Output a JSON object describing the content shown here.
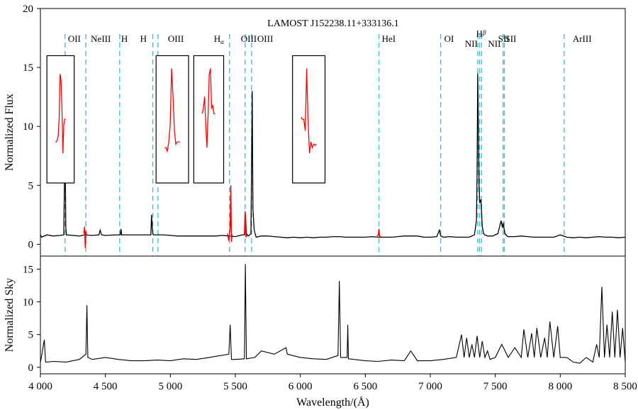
{
  "chart_data": [
    {
      "type": "line",
      "title": "LAMOST J152238.11+333136.1",
      "ylabel": "Normalized Flux",
      "xlabel": "",
      "xlim": [
        4000,
        8500
      ],
      "ylim": [
        -1,
        20
      ],
      "yticks": [
        0,
        5,
        10,
        15,
        20
      ],
      "grid": false,
      "series": [
        {
          "color": "#000000",
          "x": [
            4000,
            4010,
            4050,
            4100,
            4150,
            4180,
            4185,
            4190,
            4195,
            4200,
            4250,
            4300,
            4340,
            4400,
            4450,
            4460,
            4470,
            4500,
            4550,
            4600,
            4615,
            4620,
            4625,
            4650,
            4700,
            4750,
            4800,
            4850,
            4855,
            4860,
            4865,
            4870,
            4900,
            4950,
            5000,
            5050,
            5100,
            5150,
            5200,
            5250,
            5300,
            5350,
            5400,
            5450,
            5500,
            5550,
            5570,
            5577,
            5585,
            5600,
            5620,
            5630,
            5635,
            5645,
            5660,
            5700,
            5750,
            5800,
            5850,
            5900,
            5950,
            6000,
            6050,
            6100,
            6150,
            6200,
            6250,
            6300,
            6350,
            6400,
            6450,
            6500,
            6550,
            6600,
            6650,
            6700,
            6750,
            6800,
            6850,
            6900,
            6950,
            7000,
            7050,
            7070,
            7080,
            7100,
            7150,
            7200,
            7250,
            7300,
            7340,
            7355,
            7360,
            7365,
            7370,
            7375,
            7380,
            7390,
            7400,
            7410,
            7420,
            7440,
            7480,
            7520,
            7545,
            7555,
            7560,
            7575,
            7590,
            7600,
            7650,
            7700,
            7750,
            7800,
            7850,
            7900,
            7950,
            8000,
            8050,
            8100,
            8150,
            8200,
            8250,
            8300,
            8350,
            8400,
            8450,
            8500
          ],
          "y": [
            0.8,
            0.6,
            0.8,
            0.7,
            0.75,
            0.8,
            5.4,
            9.0,
            1.5,
            0.8,
            0.75,
            0.7,
            0.8,
            0.75,
            0.8,
            1.2,
            0.8,
            0.75,
            0.78,
            0.8,
            0.8,
            1.3,
            0.8,
            0.8,
            0.8,
            0.8,
            0.8,
            0.8,
            2.5,
            1.5,
            0.9,
            0.8,
            0.8,
            0.8,
            0.75,
            0.7,
            0.7,
            0.7,
            0.7,
            0.7,
            0.7,
            0.7,
            0.75,
            0.7,
            0.65,
            0.8,
            0.8,
            2.6,
            0.9,
            0.7,
            0.9,
            13.0,
            3.0,
            1.2,
            0.6,
            0.7,
            0.7,
            0.65,
            0.6,
            0.55,
            0.6,
            0.55,
            0.6,
            0.55,
            0.6,
            0.6,
            0.65,
            0.65,
            0.6,
            0.6,
            0.6,
            0.6,
            0.65,
            0.6,
            0.6,
            0.6,
            0.65,
            0.7,
            0.7,
            0.7,
            0.6,
            0.6,
            0.65,
            1.2,
            0.7,
            0.6,
            0.65,
            0.6,
            0.6,
            0.6,
            0.8,
            2.0,
            6.0,
            14.5,
            10.0,
            5.0,
            3.5,
            3.8,
            1.5,
            0.9,
            0.8,
            0.7,
            0.7,
            0.9,
            2.0,
            1.4,
            1.8,
            0.9,
            0.7,
            0.65,
            0.65,
            0.7,
            0.65,
            0.6,
            0.6,
            0.6,
            0.6,
            0.8,
            0.6,
            0.55,
            0.6,
            0.55,
            0.6,
            0.65,
            0.6,
            0.6,
            0.55,
            0.6
          ]
        }
      ],
      "red_segments": [
        {
          "color": "#ff0000",
          "x": [
            4335,
            4340,
            4345,
            4350,
            4355
          ],
          "y": [
            0.9,
            1.5,
            -0.3,
            1.1,
            0.8
          ]
        },
        {
          "color": "#ff0000",
          "x": [
            5440,
            5450,
            5460,
            5465,
            5470,
            5475,
            5480
          ],
          "y": [
            0.9,
            0.3,
            1.5,
            5.0,
            0.2,
            0.8,
            0.8
          ]
        },
        {
          "color": "#ff0000",
          "x": [
            5570,
            5575,
            5582,
            5590
          ],
          "y": [
            0.9,
            2.8,
            0.6,
            0.8
          ]
        },
        {
          "color": "#ff0000",
          "x": [
            6590,
            6600,
            6605,
            6610,
            6620
          ],
          "y": [
            0.7,
            0.8,
            1.3,
            0.6,
            0.7
          ]
        }
      ],
      "lines": [
        {
          "label": "OII",
          "x": 4190
        },
        {
          "label": "NeIII",
          "x": 4350
        },
        {
          "label": "H",
          "x": 4610
        },
        {
          "label": "H",
          "x": 4865
        },
        {
          "label": "OIII",
          "x": 4905
        },
        {
          "label": "Hα",
          "x": 5455
        },
        {
          "label": "OIII",
          "x": 5575
        },
        {
          "label": "OIII",
          "x": 5625
        },
        {
          "label": "HeI",
          "x": 6605
        },
        {
          "label": "OI",
          "x": 7080
        },
        {
          "label": "NII",
          "x": 7365
        },
        {
          "label": "Hβ",
          "x": 7380
        },
        {
          "label": "NII",
          "x": 7395
        },
        {
          "label": "SII",
          "x": 7560
        },
        {
          "label": "SII",
          "x": 7570
        },
        {
          "label": "ArIII",
          "x": 8030
        }
      ],
      "insets": [
        {
          "x": [
            4050,
            4260
          ],
          "y": [
            5.2,
            16.0
          ],
          "profile": [
            0.3,
            0.3,
            0.32,
            0.35,
            0.5,
            0.9,
            0.85,
            0.6,
            0.2,
            0.45,
            0.5,
            0.5
          ]
        },
        {
          "x": [
            4890,
            5140
          ],
          "y": [
            5.2,
            16.0
          ],
          "profile": [
            0.25,
            0.25,
            0.22,
            0.3,
            0.45,
            0.95,
            0.7,
            0.4,
            0.28,
            0.3,
            0.3,
            0.3
          ]
        },
        {
          "x": [
            5180,
            5410
          ],
          "y": [
            5.2,
            16.0
          ],
          "profile": [
            0.55,
            0.6,
            0.7,
            0.45,
            0.25,
            0.55,
            0.9,
            0.95,
            0.6,
            0.62,
            0.55,
            0.55
          ]
        },
        {
          "x": [
            5940,
            6190
          ],
          "y": [
            5.2,
            16.0
          ],
          "profile": [
            0.52,
            0.5,
            0.5,
            0.4,
            0.95,
            0.48,
            0.2,
            0.3,
            0.25,
            0.28,
            0.27,
            0.28
          ]
        }
      ]
    },
    {
      "type": "line",
      "title": "",
      "ylabel": "Normalized Sky",
      "xlabel": "Wavelength/(Å)",
      "xlim": [
        4000,
        8500
      ],
      "ylim": [
        -1,
        17
      ],
      "yticks": [
        0,
        5,
        10,
        15
      ],
      "xticks": [
        4000,
        4500,
        5000,
        5500,
        6000,
        6500,
        7000,
        7500,
        8000,
        8500
      ],
      "xtick_labels": [
        "4 000",
        "4 500",
        "5 000",
        "5 500",
        "6 000",
        "6 500",
        "7 000",
        "7 500",
        "8 000",
        "8 500"
      ],
      "grid": false,
      "series": [
        {
          "color": "#000000",
          "x": [
            4000,
            4030,
            4040,
            4050,
            4100,
            4200,
            4300,
            4350,
            4358,
            4365,
            4400,
            4500,
            4600,
            4700,
            4800,
            4900,
            5000,
            5100,
            5200,
            5300,
            5450,
            5460,
            5470,
            5500,
            5570,
            5577,
            5585,
            5650,
            5700,
            5800,
            5890,
            5900,
            6000,
            6100,
            6200,
            6290,
            6300,
            6310,
            6360,
            6365,
            6370,
            6500,
            6600,
            6700,
            6800,
            6850,
            6900,
            7000,
            7100,
            7200,
            7240,
            7260,
            7280,
            7300,
            7320,
            7340,
            7360,
            7380,
            7400,
            7420,
            7440,
            7460,
            7500,
            7550,
            7600,
            7650,
            7700,
            7720,
            7750,
            7780,
            7800,
            7820,
            7850,
            7880,
            7900,
            7920,
            7950,
            7980,
            8000,
            8050,
            8100,
            8150,
            8200,
            8250,
            8280,
            8300,
            8320,
            8340,
            8360,
            8380,
            8400,
            8420,
            8440,
            8460,
            8480,
            8500
          ],
          "y": [
            0.7,
            4.2,
            0.8,
            0.8,
            0.9,
            0.8,
            1.2,
            2.0,
            9.5,
            1.5,
            1.2,
            1.5,
            1.2,
            1.0,
            1.0,
            1.1,
            1.0,
            1.3,
            1.2,
            1.5,
            2.0,
            6.5,
            1.2,
            1.2,
            1.3,
            15.8,
            1.3,
            1.5,
            2.5,
            2.0,
            3.0,
            2.0,
            1.5,
            1.3,
            1.2,
            1.8,
            13.2,
            1.5,
            1.5,
            6.5,
            1.3,
            1.0,
            0.9,
            1.1,
            1.0,
            2.5,
            1.0,
            1.0,
            1.2,
            1.5,
            5.0,
            1.5,
            4.5,
            1.5,
            3.5,
            1.5,
            4.8,
            1.5,
            4.0,
            1.5,
            2.5,
            1.2,
            1.5,
            3.5,
            1.5,
            3.0,
            1.5,
            5.8,
            1.5,
            5.2,
            1.5,
            6.0,
            1.5,
            4.5,
            1.5,
            7.0,
            1.5,
            6.3,
            1.5,
            1.5,
            0.8,
            0.6,
            1.5,
            0.8,
            3.5,
            1.5,
            12.3,
            1.5,
            6.5,
            1.5,
            8.5,
            1.5,
            8.8,
            1.5,
            6.0,
            0.8
          ]
        }
      ]
    }
  ]
}
